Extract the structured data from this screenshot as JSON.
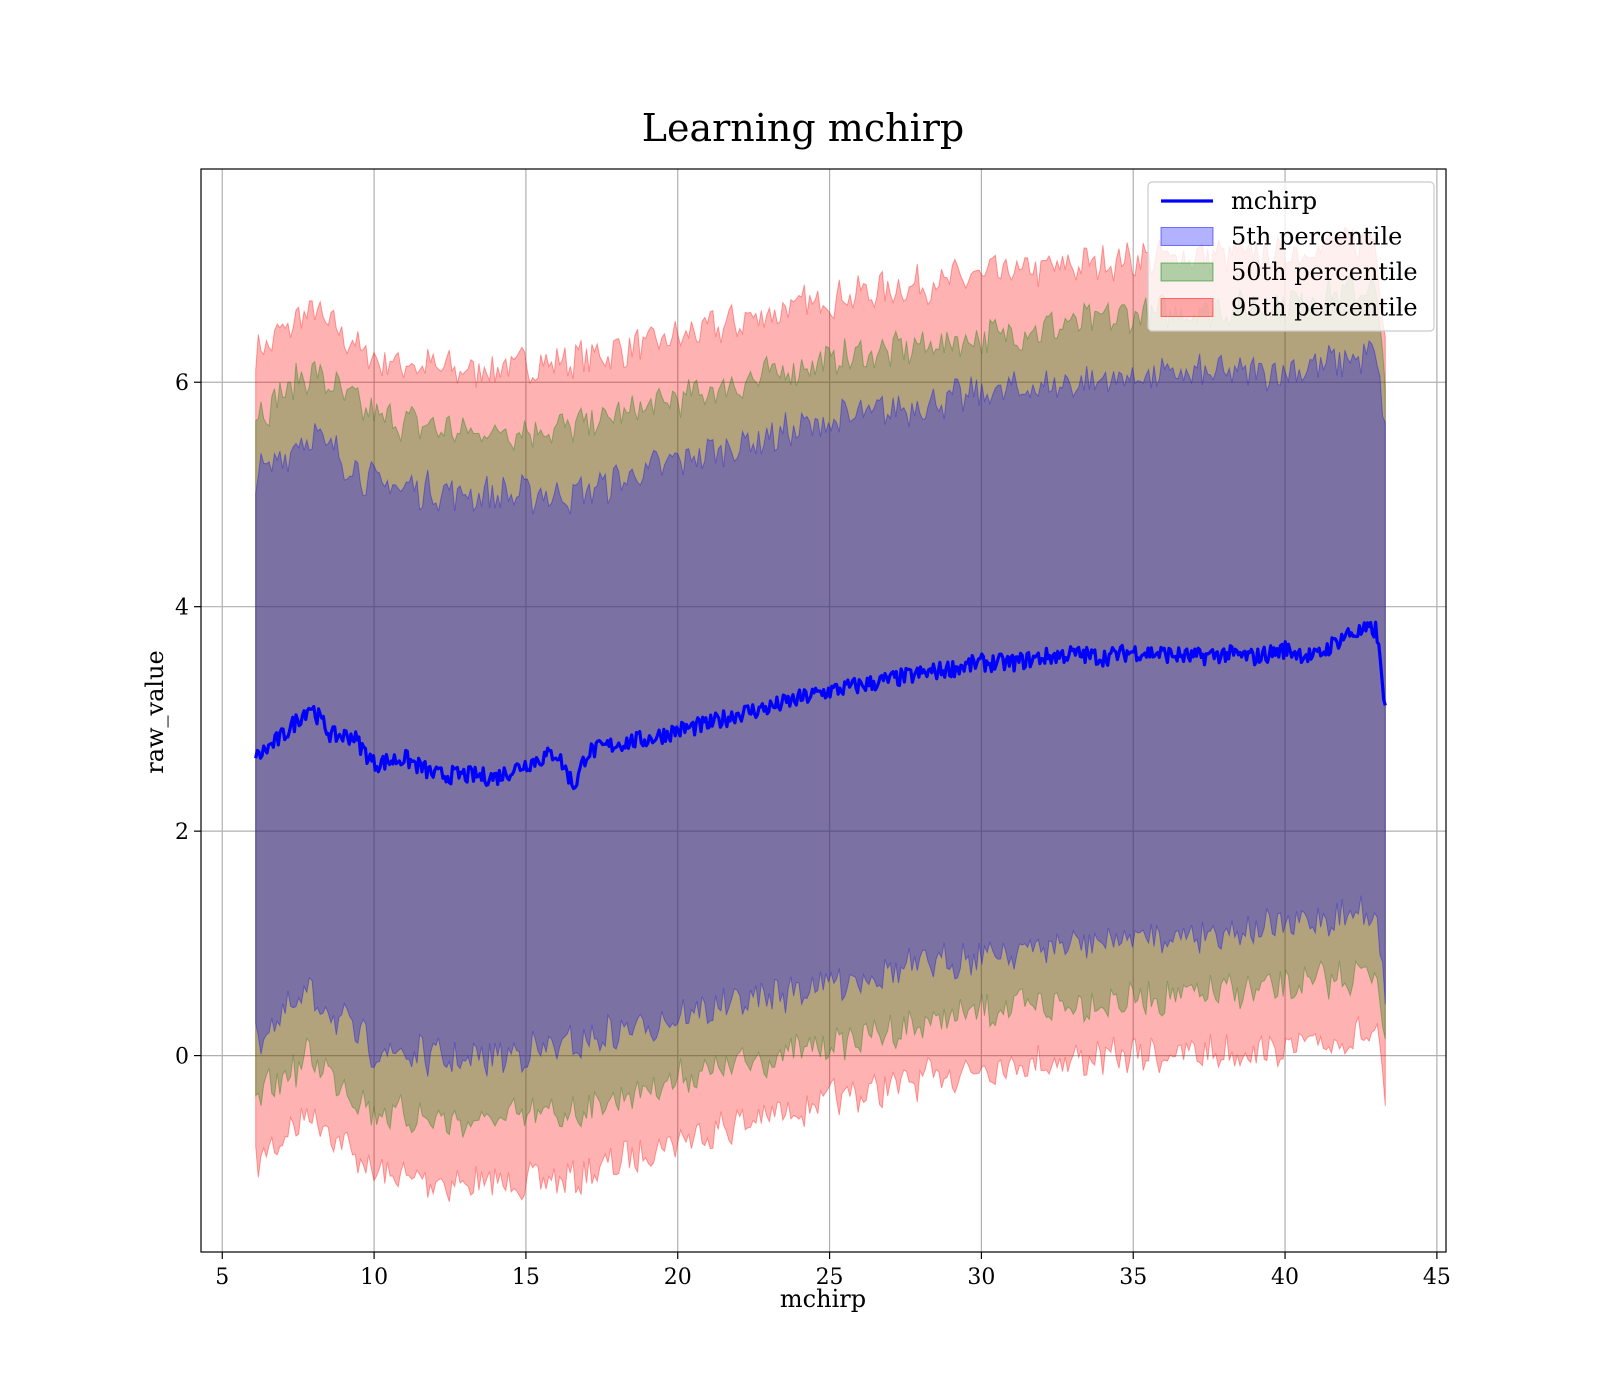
{
  "chart_data": {
    "type": "area",
    "title": "Learning mchirp",
    "xlabel": "mchirp",
    "ylabel": "raw_value",
    "xlim": [
      4.3,
      45.3
    ],
    "ylim": [
      -1.75,
      7.9
    ],
    "xticks": [
      5,
      10,
      15,
      20,
      25,
      30,
      35,
      40,
      45
    ],
    "yticks": [
      0,
      2,
      4,
      6
    ],
    "grid": true,
    "legend_position": "top-right",
    "series": [
      {
        "name": "mchirp",
        "kind": "line",
        "color": "#0000ff",
        "points": [
          [
            6.1,
            2.65
          ],
          [
            7.0,
            2.85
          ],
          [
            7.9,
            3.12
          ],
          [
            8.6,
            2.85
          ],
          [
            9.3,
            2.85
          ],
          [
            10.0,
            2.6
          ],
          [
            11.0,
            2.65
          ],
          [
            12.0,
            2.5
          ],
          [
            13.0,
            2.5
          ],
          [
            14.0,
            2.48
          ],
          [
            15.0,
            2.6
          ],
          [
            16.0,
            2.7
          ],
          [
            16.6,
            2.4
          ],
          [
            17.0,
            2.7
          ],
          [
            18.0,
            2.78
          ],
          [
            19.0,
            2.82
          ],
          [
            20.0,
            2.9
          ],
          [
            21.0,
            2.95
          ],
          [
            22.0,
            3.05
          ],
          [
            23.0,
            3.1
          ],
          [
            24.0,
            3.18
          ],
          [
            25.0,
            3.25
          ],
          [
            26.0,
            3.3
          ],
          [
            27.0,
            3.35
          ],
          [
            28.0,
            3.4
          ],
          [
            29.0,
            3.45
          ],
          [
            30.0,
            3.5
          ],
          [
            31.0,
            3.5
          ],
          [
            32.0,
            3.55
          ],
          [
            33.0,
            3.58
          ],
          [
            34.0,
            3.55
          ],
          [
            35.0,
            3.6
          ],
          [
            36.0,
            3.58
          ],
          [
            37.0,
            3.55
          ],
          [
            38.0,
            3.58
          ],
          [
            39.0,
            3.55
          ],
          [
            40.0,
            3.62
          ],
          [
            41.0,
            3.55
          ],
          [
            42.0,
            3.75
          ],
          [
            43.0,
            3.8
          ],
          [
            43.3,
            3.12
          ]
        ]
      },
      {
        "name": "5th percentile",
        "kind": "band",
        "color": "#0000ff",
        "opacity": 0.3,
        "x": [
          6.1,
          7.9,
          10.0,
          13.0,
          16.6,
          20.0,
          25.0,
          30.0,
          35.0,
          40.0,
          43.0,
          43.3
        ],
        "lower": [
          0.15,
          0.55,
          0.05,
          -0.05,
          0.1,
          0.35,
          0.65,
          0.9,
          1.05,
          1.15,
          1.3,
          0.5
        ],
        "upper": [
          5.15,
          5.55,
          5.1,
          5.0,
          5.0,
          5.3,
          5.65,
          5.9,
          6.05,
          6.1,
          6.25,
          5.6
        ]
      },
      {
        "name": "50th percentile",
        "kind": "band",
        "color": "#008000",
        "opacity": 0.3,
        "x": [
          6.1,
          7.9,
          10.0,
          13.0,
          16.6,
          20.0,
          25.0,
          30.0,
          35.0,
          40.0,
          43.0,
          43.3
        ],
        "lower": [
          -0.4,
          0.0,
          -0.5,
          -0.6,
          -0.5,
          -0.2,
          0.1,
          0.4,
          0.5,
          0.6,
          0.75,
          0.2
        ],
        "upper": [
          5.7,
          6.1,
          5.7,
          5.55,
          5.6,
          5.85,
          6.2,
          6.4,
          6.6,
          6.7,
          6.85,
          5.9
        ]
      },
      {
        "name": "95th percentile",
        "kind": "band",
        "color": "#ff0000",
        "opacity": 0.3,
        "x": [
          6.1,
          7.9,
          10.0,
          13.0,
          16.6,
          20.0,
          25.0,
          30.0,
          35.0,
          40.0,
          43.0,
          43.3
        ],
        "lower": [
          -0.95,
          -0.5,
          -1.05,
          -1.15,
          -1.1,
          -0.75,
          -0.4,
          -0.1,
          0.0,
          0.05,
          0.2,
          -0.45
        ],
        "upper": [
          6.25,
          6.65,
          6.2,
          6.1,
          6.2,
          6.4,
          6.75,
          6.95,
          7.1,
          7.15,
          7.3,
          6.4
        ]
      }
    ]
  }
}
